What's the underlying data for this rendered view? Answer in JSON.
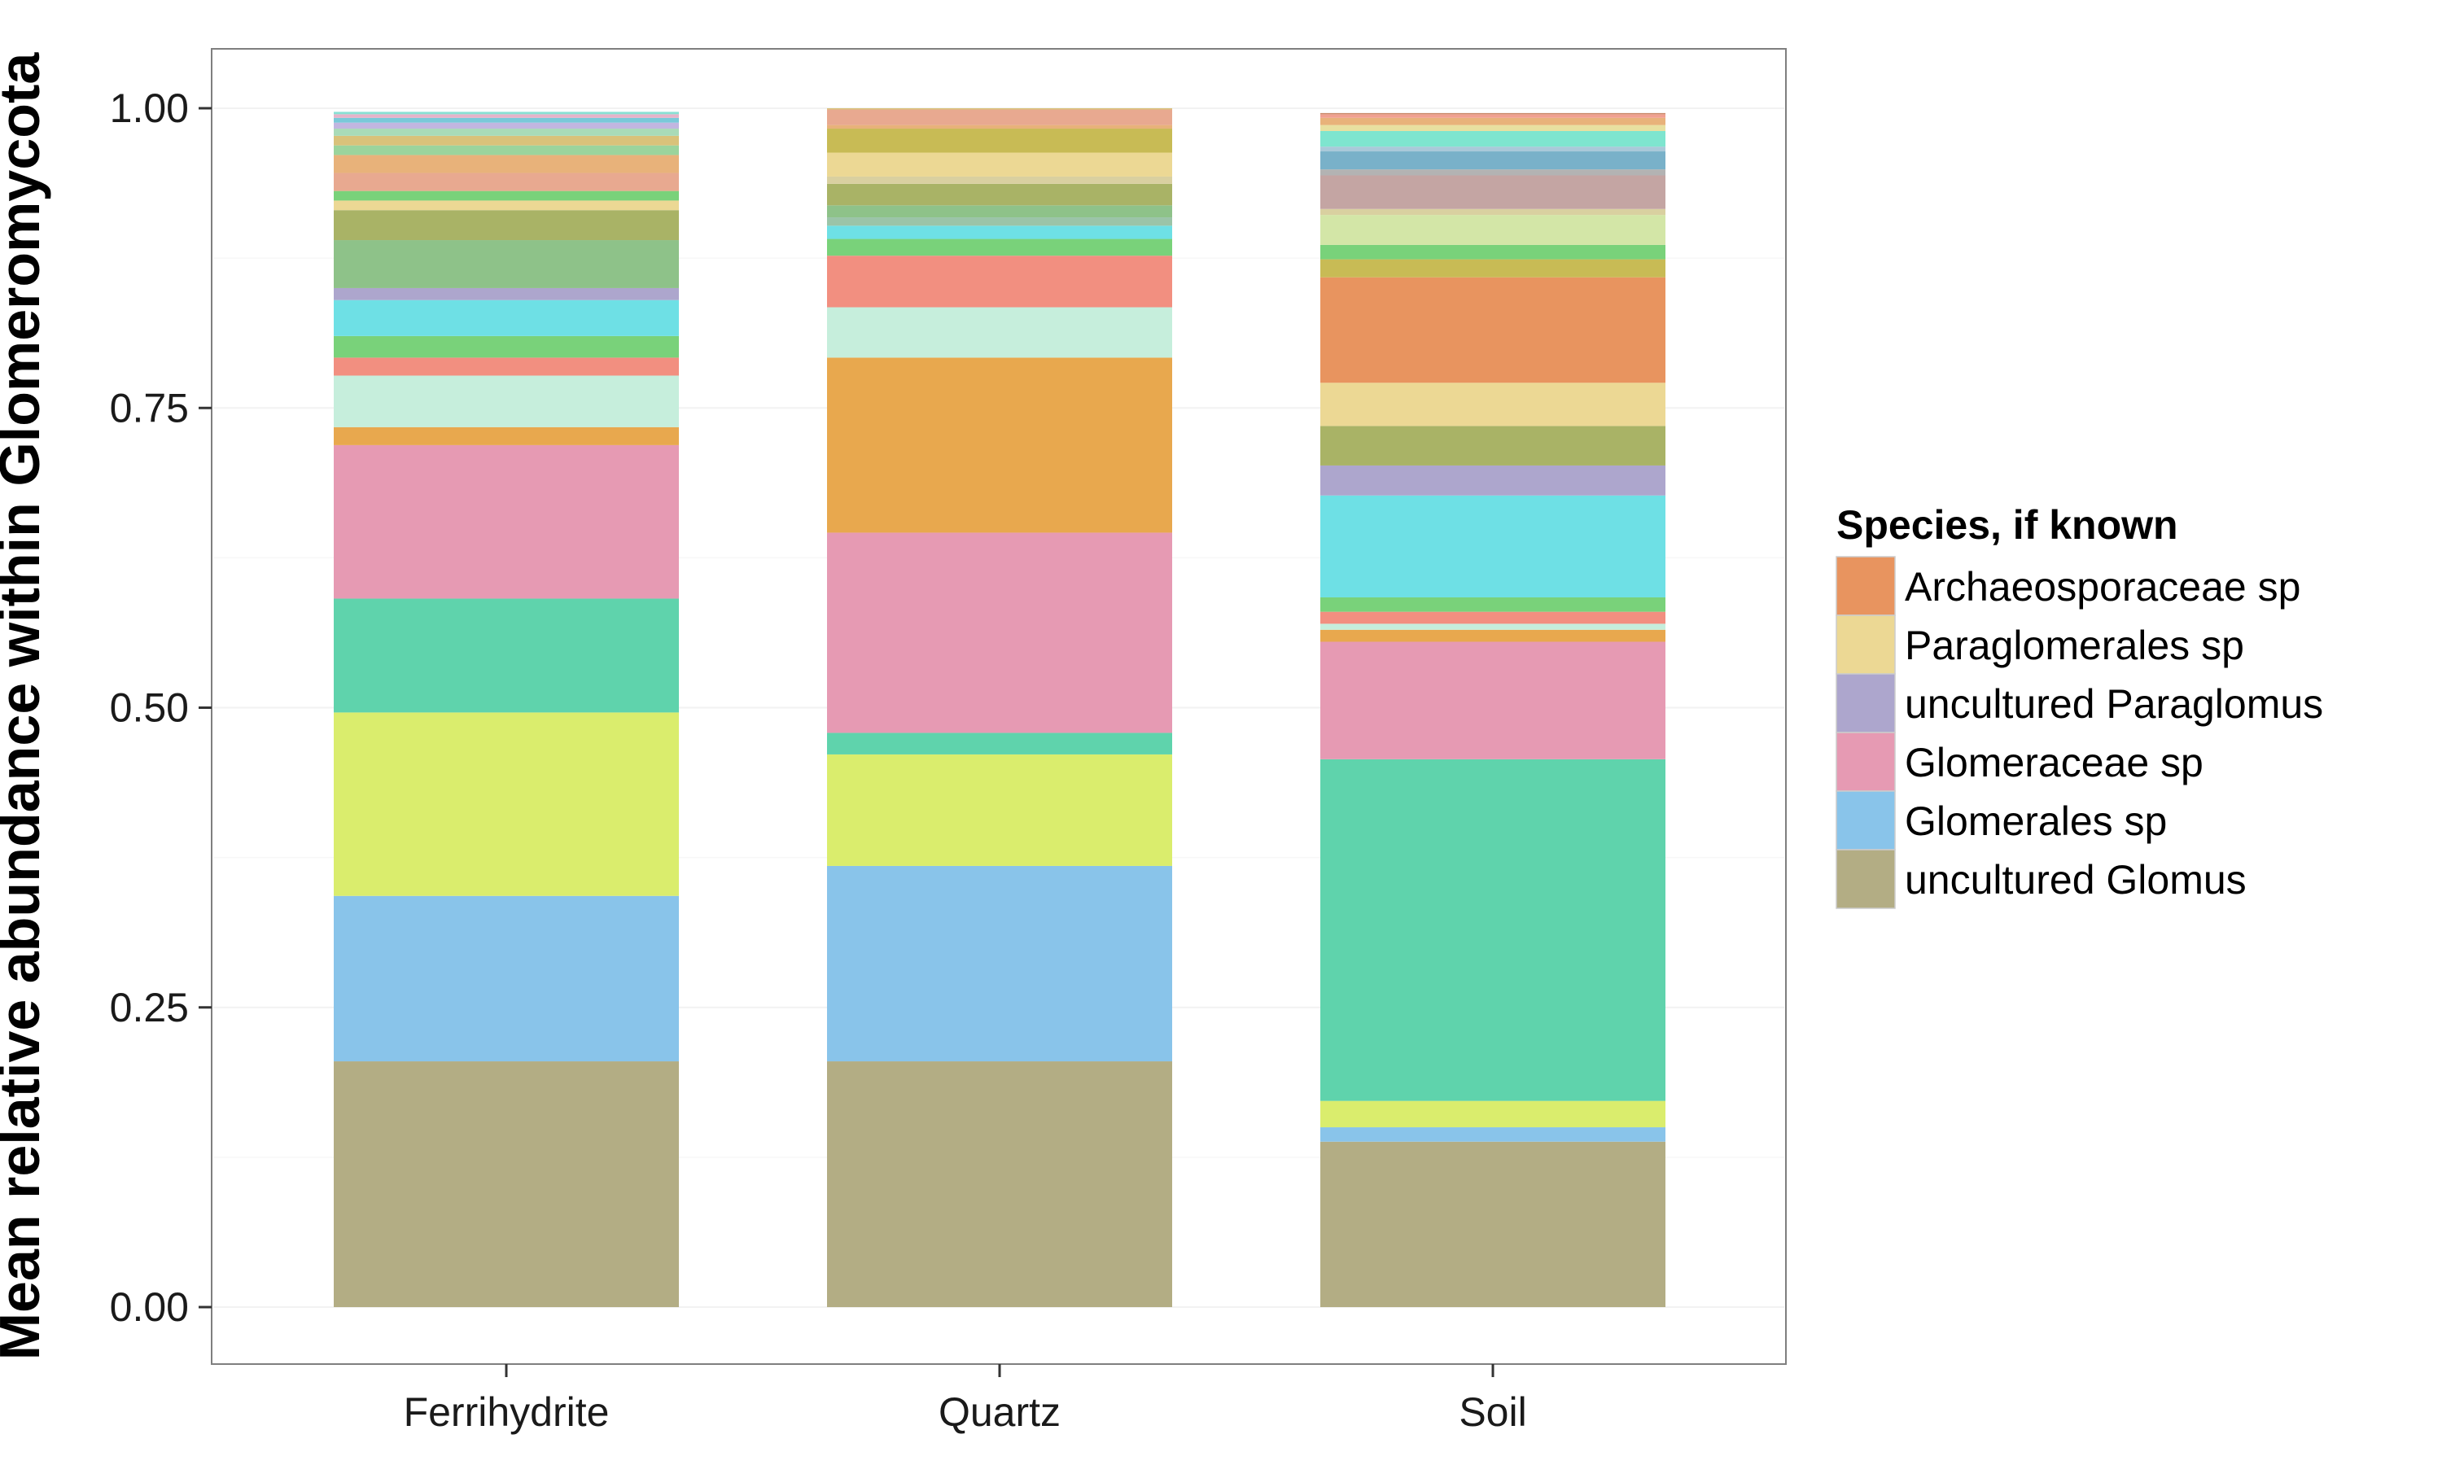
{
  "chart_data": {
    "type": "bar",
    "stacked": true,
    "title": "",
    "xlabel": "",
    "ylabel": "Mean relative abundance within Glomeromycota",
    "ylim": [
      0,
      1.05
    ],
    "yticks": [
      "0.00",
      "0.25",
      "0.50",
      "0.75",
      "1.00"
    ],
    "categories": [
      "Ferrihydrite",
      "Quartz",
      "Soil"
    ],
    "legend": {
      "title": "Species, if known",
      "position": "right",
      "entries": [
        {
          "label": "Archaeosporaceae sp",
          "color": "#e8945f"
        },
        {
          "label": "Paraglomerales sp",
          "color": "#ecd894"
        },
        {
          "label": "uncultured Paraglomus",
          "color": "#ada6cd"
        },
        {
          "label": "Glomeraceae sp",
          "color": "#e69ab3"
        },
        {
          "label": "Glomerales sp",
          "color": "#89c4ea"
        },
        {
          "label": "uncultured Glomus",
          "color": "#b3ad84"
        }
      ]
    },
    "stacks": [
      {
        "category": "Ferrihydrite",
        "segments": [
          {
            "value": 0.205,
            "color": "#b3ad84"
          },
          {
            "value": 0.138,
            "color": "#89c4ea"
          },
          {
            "value": 0.153,
            "color": "#daed6d"
          },
          {
            "value": 0.095,
            "color": "#5fd3ac"
          },
          {
            "value": 0.128,
            "color": "#e69ab3"
          },
          {
            "value": 0.015,
            "color": "#e8a84e"
          },
          {
            "value": 0.043,
            "color": "#c6eedc"
          },
          {
            "value": 0.015,
            "color": "#f28f80"
          },
          {
            "value": 0.018,
            "color": "#79d27a"
          },
          {
            "value": 0.03,
            "color": "#6ee0e5"
          },
          {
            "value": 0.01,
            "color": "#ada6cd"
          },
          {
            "value": 0.04,
            "color": "#8ec289"
          },
          {
            "value": 0.025,
            "color": "#a9b366"
          },
          {
            "value": 0.008,
            "color": "#ecd894"
          },
          {
            "value": 0.008,
            "color": "#79d27a"
          },
          {
            "value": 0.015,
            "color": "#e8a990"
          },
          {
            "value": 0.015,
            "color": "#e8b27a"
          },
          {
            "value": 0.008,
            "color": "#9bd49c"
          },
          {
            "value": 0.008,
            "color": "#d9c27a"
          },
          {
            "value": 0.006,
            "color": "#a9dbb8"
          },
          {
            "value": 0.005,
            "color": "#c1b6e0"
          },
          {
            "value": 0.004,
            "color": "#79c9d9"
          },
          {
            "value": 0.003,
            "color": "#e6b3c9"
          },
          {
            "value": 0.002,
            "color": "#89e0d4"
          }
        ]
      },
      {
        "category": "Quartz",
        "segments": [
          {
            "value": 0.205,
            "color": "#b3ad84"
          },
          {
            "value": 0.163,
            "color": "#89c4ea"
          },
          {
            "value": 0.093,
            "color": "#daed6d"
          },
          {
            "value": 0.018,
            "color": "#5fd3ac"
          },
          {
            "value": 0.167,
            "color": "#e69ab3"
          },
          {
            "value": 0.146,
            "color": "#e8a84e"
          },
          {
            "value": 0.042,
            "color": "#c6eedc"
          },
          {
            "value": 0.043,
            "color": "#f28f80"
          },
          {
            "value": 0.014,
            "color": "#79d27a"
          },
          {
            "value": 0.011,
            "color": "#6ee0e5"
          },
          {
            "value": 0.007,
            "color": "#9bc4a8"
          },
          {
            "value": 0.01,
            "color": "#8ec289"
          },
          {
            "value": 0.018,
            "color": "#a9b366"
          },
          {
            "value": 0.006,
            "color": "#d9d0a0"
          },
          {
            "value": 0.02,
            "color": "#ecd894"
          },
          {
            "value": 0.02,
            "color": "#c8bb55"
          },
          {
            "value": 0.003,
            "color": "#e8b27a"
          },
          {
            "value": 0.013,
            "color": "#e8a990"
          },
          {
            "value": 0.001,
            "color": "#d9c27a"
          }
        ]
      },
      {
        "category": "Soil",
        "segments": [
          {
            "value": 0.138,
            "color": "#b3ad84"
          },
          {
            "value": 0.012,
            "color": "#89c4ea"
          },
          {
            "value": 0.022,
            "color": "#daed6d"
          },
          {
            "value": 0.285,
            "color": "#5fd3ac"
          },
          {
            "value": 0.098,
            "color": "#e69ab3"
          },
          {
            "value": 0.01,
            "color": "#e8a84e"
          },
          {
            "value": 0.005,
            "color": "#c6eedc"
          },
          {
            "value": 0.01,
            "color": "#f28f80"
          },
          {
            "value": 0.012,
            "color": "#79d27a"
          },
          {
            "value": 0.085,
            "color": "#6ee0e5"
          },
          {
            "value": 0.025,
            "color": "#ada6cd"
          },
          {
            "value": 0.033,
            "color": "#a9b366"
          },
          {
            "value": 0.036,
            "color": "#ecd894"
          },
          {
            "value": 0.088,
            "color": "#e8945f"
          },
          {
            "value": 0.015,
            "color": "#c8bb55"
          },
          {
            "value": 0.012,
            "color": "#79d27a"
          },
          {
            "value": 0.025,
            "color": "#d3e6a7"
          },
          {
            "value": 0.005,
            "color": "#d9d0a0"
          },
          {
            "value": 0.028,
            "color": "#c4a5a3"
          },
          {
            "value": 0.005,
            "color": "#b3b3b3"
          },
          {
            "value": 0.015,
            "color": "#79b1c9"
          },
          {
            "value": 0.004,
            "color": "#a9c9d9"
          },
          {
            "value": 0.013,
            "color": "#7ee5cf"
          },
          {
            "value": 0.005,
            "color": "#e8e0a0"
          },
          {
            "value": 0.006,
            "color": "#e8b27a"
          },
          {
            "value": 0.003,
            "color": "#f0a090"
          },
          {
            "value": 0.001,
            "color": "#c98a6a"
          }
        ]
      }
    ]
  }
}
